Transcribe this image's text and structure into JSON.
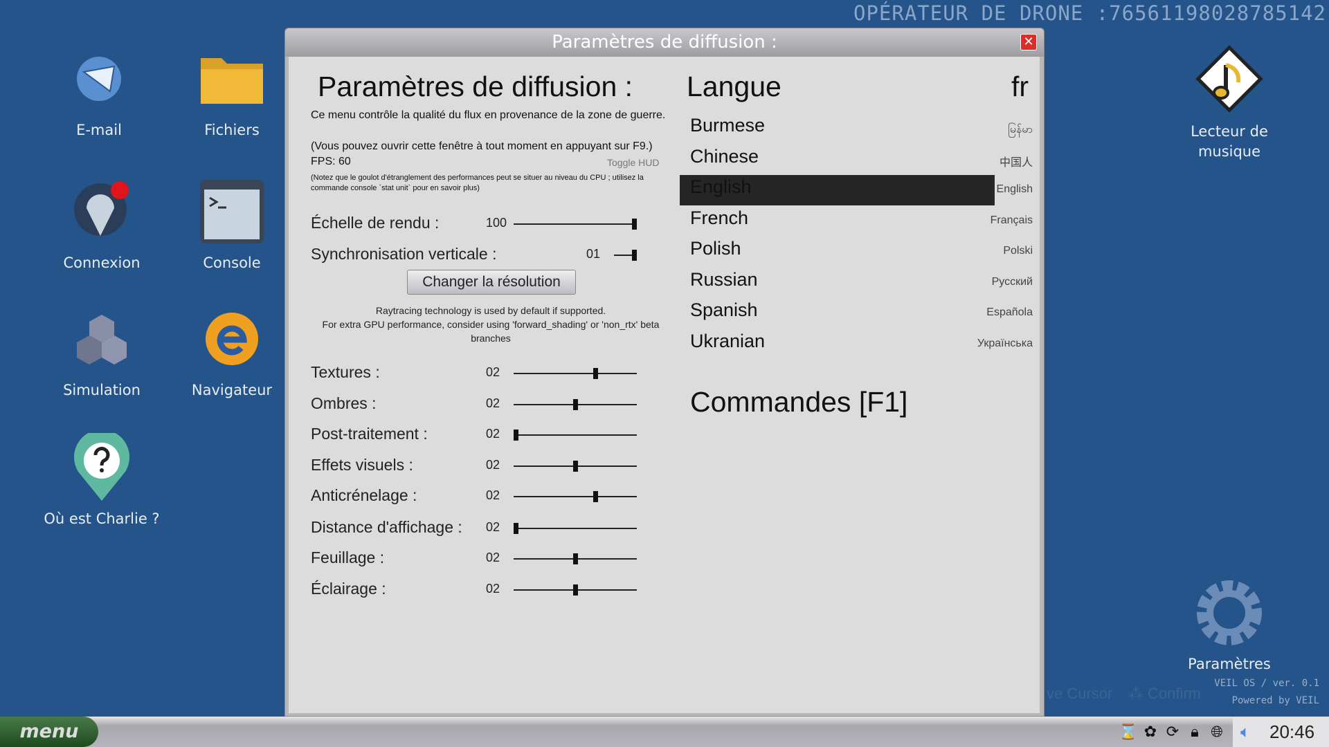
{
  "operator_id": "OPÉRATEUR DE DRONE :76561198028785142",
  "desktop_icons": [
    {
      "label": "E-mail",
      "icon": "email-icon"
    },
    {
      "label": "Fichiers",
      "icon": "folder-icon"
    },
    {
      "label": "Connexion",
      "icon": "connection-icon"
    },
    {
      "label": "Console",
      "icon": "console-icon"
    },
    {
      "label": "Simulation",
      "icon": "cubes-icon"
    },
    {
      "label": "Navigateur",
      "icon": "browser-icon"
    },
    {
      "label": "Où est Charlie ?",
      "icon": "question-pin-icon"
    },
    {
      "label": "Lecteur de musique",
      "icon": "music-note-icon"
    },
    {
      "label": "Paramètres",
      "icon": "gear-icon"
    }
  ],
  "window": {
    "title": "Paramètres de diffusion :",
    "heading": "Paramètres de diffusion :",
    "desc1": "Ce menu contrôle la qualité du flux en provenance de la zone de guerre.",
    "desc2": "(Vous pouvez ouvrir cette fenêtre à tout moment en appuyant sur F9.)",
    "fps": "FPS: 60",
    "toggle_hud": "Toggle HUD",
    "note": "(Notez que le goulot d'étranglement des performances peut se situer au niveau du CPU ; utilisez la commande console `stat unit` pour en savoir plus)",
    "render_scale": {
      "label": "Échelle de rendu :",
      "value": "100",
      "fraction": 1.0
    },
    "vsync": {
      "label": "Synchronisation verticale :",
      "value": "01",
      "fraction": 1.0
    },
    "change_resolution": "Changer la résolution",
    "raytracing1": "Raytracing technology is used by default if supported.",
    "raytracing2": "For extra GPU performance, consider using 'forward_shading' or 'non_rtx' beta branches",
    "sliders": [
      {
        "label": "Textures :",
        "value": "02",
        "fraction": 0.67
      },
      {
        "label": "Ombres :",
        "value": "02",
        "fraction": 0.5
      },
      {
        "label": "Post-traitement :",
        "value": "02",
        "fraction": 0
      },
      {
        "label": "Effets visuels :",
        "value": "02",
        "fraction": 0.5
      },
      {
        "label": "Anticrénelage :",
        "value": "02",
        "fraction": 0.67
      },
      {
        "label": "Distance d'affichage :",
        "value": "02",
        "fraction": 0
      },
      {
        "label": "Feuillage :",
        "value": "02",
        "fraction": 0.5
      },
      {
        "label": "Éclairage :",
        "value": "02",
        "fraction": 0.5
      }
    ],
    "language_heading": "Langue",
    "language_code": "fr",
    "languages": [
      {
        "name": "Burmese",
        "native": "မြန်မာ"
      },
      {
        "name": "Chinese",
        "native": "中国人"
      },
      {
        "name": "English",
        "native": "English",
        "selected": true
      },
      {
        "name": "French",
        "native": "Français"
      },
      {
        "name": "Polish",
        "native": "Polski"
      },
      {
        "name": "Russian",
        "native": "Русский"
      },
      {
        "name": "Spanish",
        "native": "Española"
      },
      {
        "name": "Ukranian",
        "native": "Українська"
      }
    ],
    "commands": "Commandes [F1]"
  },
  "hints": {
    "move": "ve Cursor",
    "confirm": "Confirm"
  },
  "os_version": "VEIL OS / ver. 0.1",
  "powered_by": "Powered by VEIL",
  "taskbar": {
    "menu": "menu",
    "clock": "20:46"
  }
}
